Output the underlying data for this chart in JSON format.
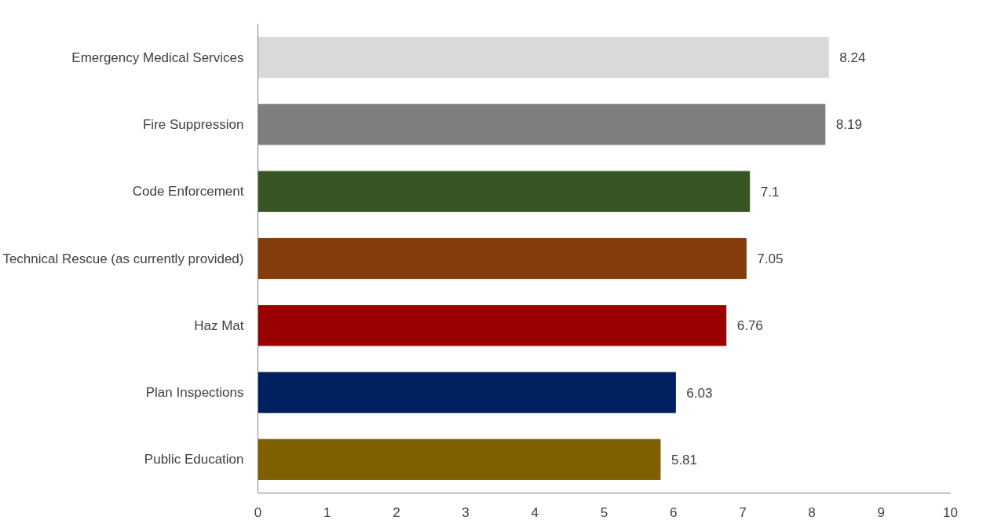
{
  "chart_data": {
    "type": "bar",
    "orientation": "horizontal",
    "categories": [
      "Emergency Medical Services",
      "Fire Suppression",
      "Code Enforcement",
      "Technical Rescue (as currently provided)",
      "Haz Mat",
      "Plan Inspections",
      "Public Education"
    ],
    "values": [
      8.24,
      8.19,
      7.1,
      7.05,
      6.76,
      6.03,
      5.81
    ],
    "colors": [
      "#d9d9d9",
      "#7f7f7f",
      "#375623",
      "#843c0c",
      "#990000",
      "#002060",
      "#7f6000"
    ],
    "xlim": [
      0,
      10
    ],
    "xticks": [
      0,
      1,
      2,
      3,
      4,
      5,
      6,
      7,
      8,
      9,
      10
    ],
    "grid": false,
    "data_labels": true
  }
}
